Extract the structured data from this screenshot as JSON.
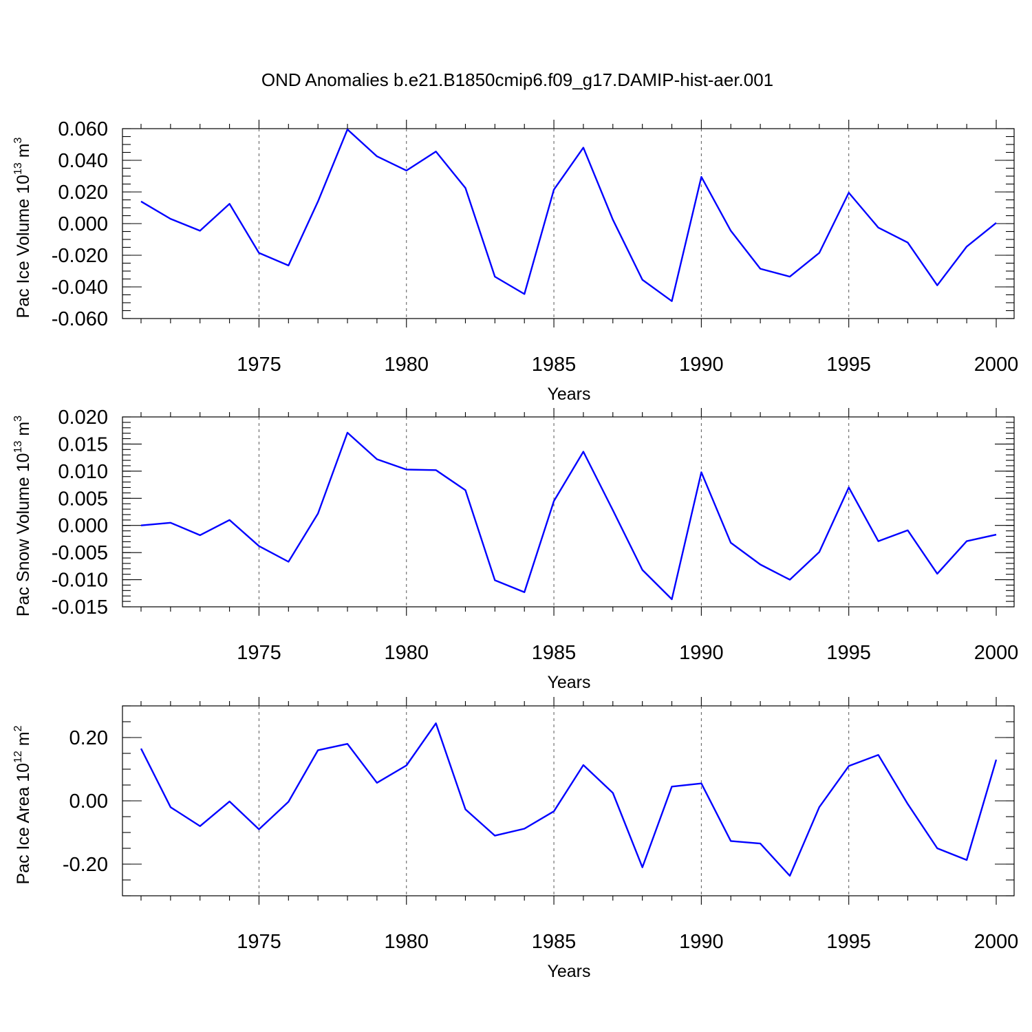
{
  "figure": {
    "title": "OND Anomalies b.e21.B1850cmip6.f09_g17.DAMIP-hist-aer.001"
  },
  "colors": {
    "line": "#0000ff",
    "axis": "#000000",
    "grid": "#555555"
  },
  "chart_data": [
    {
      "type": "line",
      "ylabel": "Pac Ice Volume 10",
      "ylabel_exp": "13",
      "ylabel_unit": " m",
      "ylabel_unit_exp": "3",
      "xlabel": "Years",
      "xlim": [
        1971,
        2000
      ],
      "ylim": [
        -0.06,
        0.06
      ],
      "x_ticks": [
        "1975",
        "1980",
        "1985",
        "1990",
        "1995",
        "2000"
      ],
      "y_ticks": [
        "0.060",
        "0.040",
        "0.020",
        "0.000",
        "-0.020",
        "-0.040",
        "-0.060"
      ],
      "grid": "vertical dashed at labeled years",
      "x": [
        1971,
        1972,
        1973,
        1974,
        1975,
        1976,
        1977,
        1978,
        1979,
        1980,
        1981,
        1982,
        1983,
        1984,
        1985,
        1986,
        1987,
        1988,
        1989,
        1990,
        1991,
        1992,
        1993,
        1994,
        1995,
        1996,
        1997,
        1998,
        1999,
        2000
      ],
      "y": [
        0.014,
        0.003,
        -0.0045,
        0.0125,
        -0.0185,
        -0.0265,
        0.014,
        0.0595,
        0.0425,
        0.0335,
        0.0455,
        0.0225,
        -0.0335,
        -0.0445,
        0.0215,
        0.048,
        0.0025,
        -0.0355,
        -0.049,
        0.0295,
        -0.0045,
        -0.0285,
        -0.0335,
        -0.0185,
        0.0195,
        -0.0025,
        -0.012,
        -0.039,
        -0.0145,
        0.0005
      ]
    },
    {
      "type": "line",
      "ylabel": "Pac Snow Volume 10",
      "ylabel_exp": "13",
      "ylabel_unit": " m",
      "ylabel_unit_exp": "3",
      "xlabel": "Years",
      "xlim": [
        1971,
        2000
      ],
      "ylim": [
        -0.015,
        0.02
      ],
      "x_ticks": [
        "1975",
        "1980",
        "1985",
        "1990",
        "1995",
        "2000"
      ],
      "y_ticks": [
        "0.020",
        "0.015",
        "0.010",
        "0.005",
        "0.000",
        "-0.005",
        "-0.010",
        "-0.015"
      ],
      "grid": "vertical dashed at labeled years",
      "x": [
        1971,
        1972,
        1973,
        1974,
        1975,
        1976,
        1977,
        1978,
        1979,
        1980,
        1981,
        1982,
        1983,
        1984,
        1985,
        1986,
        1987,
        1988,
        1989,
        1990,
        1991,
        1992,
        1993,
        1994,
        1995,
        1996,
        1997,
        1998,
        1999,
        2000
      ],
      "y": [
        0.0,
        0.0005,
        -0.0018,
        0.001,
        -0.0038,
        -0.0067,
        0.0022,
        0.0171,
        0.0122,
        0.0103,
        0.0102,
        0.0065,
        -0.0101,
        -0.0123,
        0.0045,
        0.0136,
        0.0028,
        -0.0082,
        -0.0136,
        0.0098,
        -0.0032,
        -0.0072,
        -0.01,
        -0.0049,
        0.007,
        -0.0029,
        -0.0009,
        -0.0089,
        -0.0029,
        -0.0017
      ]
    },
    {
      "type": "line",
      "ylabel": "Pac Ice Area 10",
      "ylabel_exp": "12",
      "ylabel_unit": " m",
      "ylabel_unit_exp": "2",
      "xlabel": "Years",
      "xlim": [
        1971,
        2000
      ],
      "ylim": [
        -0.3,
        0.3
      ],
      "x_ticks": [
        "1975",
        "1980",
        "1985",
        "1990",
        "1995",
        "2000"
      ],
      "y_ticks": [
        "0.20",
        "0.00",
        "-0.20"
      ],
      "grid": "vertical dashed at labeled years",
      "x": [
        1971,
        1972,
        1973,
        1974,
        1975,
        1976,
        1977,
        1978,
        1979,
        1980,
        1981,
        1982,
        1983,
        1984,
        1985,
        1986,
        1987,
        1988,
        1989,
        1990,
        1991,
        1992,
        1993,
        1994,
        1995,
        1996,
        1997,
        1998,
        1999,
        2000
      ],
      "y": [
        0.165,
        -0.02,
        -0.08,
        -0.002,
        -0.09,
        -0.003,
        0.16,
        0.18,
        0.057,
        0.112,
        0.245,
        -0.027,
        -0.11,
        -0.088,
        -0.033,
        0.113,
        0.025,
        -0.21,
        0.045,
        0.055,
        -0.127,
        -0.135,
        -0.237,
        -0.02,
        0.11,
        0.145,
        -0.01,
        -0.15,
        -0.187,
        0.13
      ]
    }
  ]
}
